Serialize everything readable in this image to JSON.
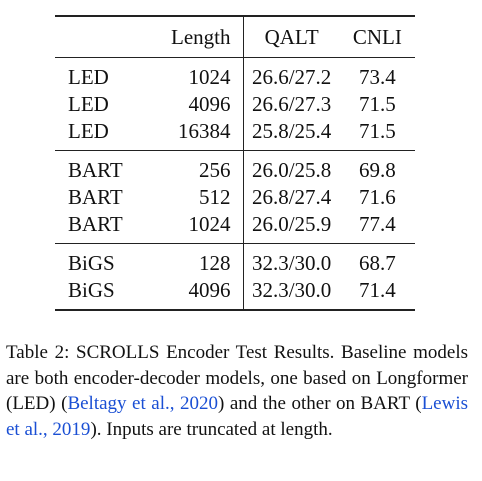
{
  "table": {
    "headers": [
      "",
      "Length",
      "QALT",
      "CNLI"
    ],
    "groups": [
      {
        "rows": [
          {
            "model": "LED",
            "length": "1024",
            "qalt": "26.6/27.2",
            "cnli": "73.4"
          },
          {
            "model": "LED",
            "length": "4096",
            "qalt": "26.6/27.3",
            "cnli": "71.5"
          },
          {
            "model": "LED",
            "length": "16384",
            "qalt": "25.8/25.4",
            "cnli": "71.5"
          }
        ]
      },
      {
        "rows": [
          {
            "model": "BART",
            "length": "256",
            "qalt": "26.0/25.8",
            "cnli": "69.8"
          },
          {
            "model": "BART",
            "length": "512",
            "qalt": "26.8/27.4",
            "cnli": "71.6"
          },
          {
            "model": "BART",
            "length": "1024",
            "qalt": "26.0/25.9",
            "cnli": "77.4"
          }
        ]
      },
      {
        "rows": [
          {
            "model": "BiGS",
            "length": "128",
            "qalt": "32.3/30.0",
            "cnli": "68.7"
          },
          {
            "model": "BiGS",
            "length": "4096",
            "qalt": "32.3/30.0",
            "cnli": "71.4"
          }
        ]
      }
    ]
  },
  "caption": {
    "label": "Table 2:",
    "text_1": " SCROLLS Encoder Test Results. Baseline models are both encoder-decoder models, one based on Longformer (LED) (",
    "cite_1": "Beltagy et al., 2020",
    "text_2": ") and the other on BART (",
    "cite_2": "Lewis et al., 2019",
    "text_3": "). Inputs are truncated at length."
  }
}
